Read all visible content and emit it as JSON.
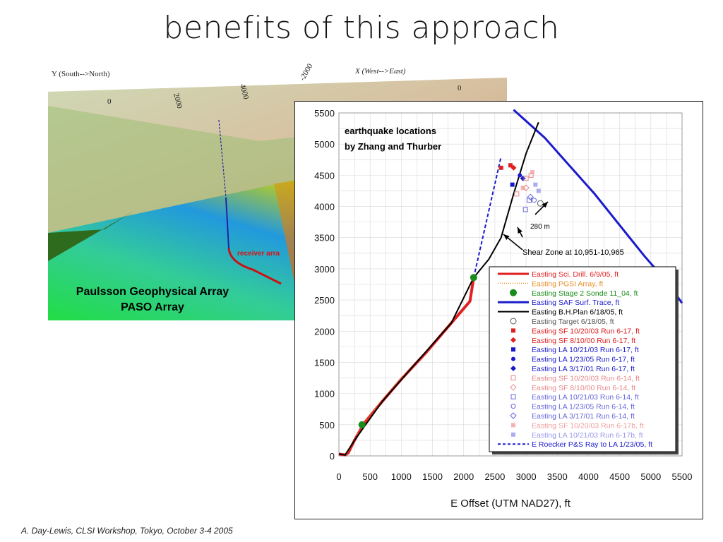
{
  "slide": {
    "title": "benefits of this approach",
    "footer": "A. Day-Lewis, CLSI Workshop, Tokyo, October 3-4 2005"
  },
  "photo": {
    "y_axis_label": "Y (South-->North)",
    "x_axis_label": "X (West-->East)",
    "ticks": [
      "0",
      "2000",
      "4000",
      "-2000",
      "0"
    ],
    "receiver_label": "receiver arra",
    "caption_line1": "Paulsson Geophysical Array",
    "caption_line2": "PASO Array"
  },
  "chart_data": {
    "type": "line",
    "xlabel": "E Offset (UTM NAD27), ft",
    "xlim": [
      0,
      5500
    ],
    "ylim": [
      0,
      5500
    ],
    "x_ticks": [
      "0",
      "500",
      "1000",
      "1500",
      "2000",
      "2500",
      "3000",
      "3500",
      "4000",
      "4500",
      "5000",
      "5500"
    ],
    "y_ticks": [
      "0",
      "500",
      "1000",
      "1500",
      "2000",
      "2500",
      "3000",
      "3500",
      "4000",
      "4500",
      "5000",
      "5500"
    ],
    "annotations": {
      "eq_line1": "earthquake locations",
      "eq_line2": "by Zhang and Thurber",
      "distance": "280 m",
      "shear_zone": "Shear Zone at 10,951-10,965"
    },
    "series": [
      {
        "name": "Easting Sci. Drill. 6/9/05, ft",
        "color": "#e02020",
        "points": [
          [
            0,
            30
          ],
          [
            100,
            15
          ],
          [
            150,
            50
          ],
          [
            250,
            250
          ],
          [
            400,
            520
          ],
          [
            700,
            880
          ],
          [
            1000,
            1230
          ],
          [
            1400,
            1660
          ],
          [
            1800,
            2130
          ],
          [
            2100,
            2480
          ],
          [
            2160,
            2860
          ]
        ]
      },
      {
        "name": "Easting PGSI Array, ft",
        "color": "#e8902a",
        "points": [
          [
            120,
            20
          ],
          [
            250,
            260
          ],
          [
            400,
            530
          ],
          [
            700,
            890
          ],
          [
            1000,
            1240
          ],
          [
            1400,
            1670
          ],
          [
            1800,
            2140
          ],
          [
            2150,
            2850
          ]
        ]
      },
      {
        "name": "Easting Stage 2 Sonde 11_04, ft",
        "color": "#1a8c1a",
        "points": [
          [
            370,
            500
          ],
          [
            2160,
            2860
          ]
        ]
      },
      {
        "name": "Easting SAF Surf. Trace, ft",
        "color": "#1a1acc",
        "points": [
          [
            2800,
            5550
          ],
          [
            3300,
            5100
          ],
          [
            3700,
            4650
          ],
          [
            4100,
            4200
          ],
          [
            4500,
            3700
          ],
          [
            4900,
            3200
          ],
          [
            5250,
            2800
          ],
          [
            5500,
            2450
          ]
        ]
      },
      {
        "name": "Easting B.H.Plan 6/18/05, ft",
        "color": "#000000",
        "points": [
          [
            0,
            30
          ],
          [
            100,
            15
          ],
          [
            250,
            250
          ],
          [
            700,
            880
          ],
          [
            1200,
            1450
          ],
          [
            1800,
            2130
          ],
          [
            2160,
            2860
          ],
          [
            2400,
            3150
          ],
          [
            2600,
            3500
          ],
          [
            2800,
            4200
          ],
          [
            3000,
            4850
          ],
          [
            3200,
            5350
          ]
        ]
      },
      {
        "name": "Easting Target 6/18/05, ft",
        "color": "#555555",
        "points": [
          [
            3230,
            4050
          ]
        ]
      },
      {
        "name": "Easting SF 10/20/03 Run 6-17, ft",
        "color": "#e02020",
        "points": [
          [
            2600,
            4620
          ],
          [
            2750,
            4660
          ]
        ]
      },
      {
        "name": "Easting SF 8/10/00 Run 6-17, ft",
        "color": "#e02020",
        "points": [
          [
            2800,
            4620
          ]
        ]
      },
      {
        "name": "Easting LA 10/21/03 Run 6-17, ft",
        "color": "#1a1acc",
        "points": [
          [
            2780,
            4350
          ]
        ]
      },
      {
        "name": "Easting LA 1/23/05 Run 6-17, ft",
        "color": "#1a1acc",
        "points": [
          [
            2900,
            4500
          ]
        ]
      },
      {
        "name": "Easting LA 3/17/01 Run 6-17, ft",
        "color": "#1a1acc",
        "points": [
          [
            2950,
            4450
          ]
        ]
      },
      {
        "name": "Easting SF 10/20/03 Run 6-14, ft",
        "color": "#e88888",
        "points": [
          [
            2850,
            4200
          ],
          [
            3000,
            4450
          ],
          [
            3080,
            4500
          ]
        ]
      },
      {
        "name": "Easting SF 8/10/00 Run 6-14, ft",
        "color": "#e88888",
        "points": [
          [
            3000,
            4300
          ]
        ]
      },
      {
        "name": "Easting LA 10/21/03 Run 6-14, ft",
        "color": "#6666dd",
        "points": [
          [
            3050,
            4100
          ],
          [
            2990,
            3950
          ]
        ]
      },
      {
        "name": "Easting LA 1/23/05 Run 6-14, ft",
        "color": "#6666dd",
        "points": [
          [
            3130,
            4100
          ]
        ]
      },
      {
        "name": "Easting LA 3/17/01 Run 6-14, ft",
        "color": "#6666dd",
        "points": [
          [
            3070,
            4150
          ]
        ]
      },
      {
        "name": "Easting SF 10/20/03 Run 6-17b, ft",
        "color": "#f0a0a0",
        "points": [
          [
            3100,
            4550
          ],
          [
            2950,
            4300
          ]
        ]
      },
      {
        "name": "Easting LA 10/21/03 Run 6-17b, ft",
        "color": "#9999ee",
        "points": [
          [
            3150,
            4350
          ],
          [
            3200,
            4250
          ]
        ]
      },
      {
        "name": "E Roecker P&S Ray to LA 1/23/05, ft",
        "color": "#1a1acc",
        "points": [
          [
            2160,
            2860
          ],
          [
            2350,
            3700
          ],
          [
            2600,
            4800
          ]
        ]
      }
    ]
  }
}
